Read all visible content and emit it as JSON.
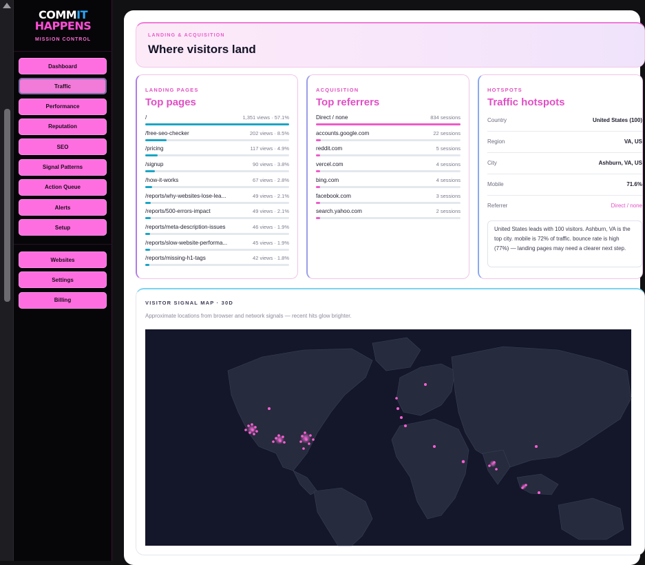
{
  "brand": {
    "line1_a": "COMM",
    "line1_b": "IT",
    "line2": "HAPPENS",
    "subtitle": "MISSION CONTROL"
  },
  "nav": {
    "primary": [
      {
        "label": "Dashboard",
        "active": false
      },
      {
        "label": "Traffic",
        "active": true
      },
      {
        "label": "Performance",
        "active": false
      },
      {
        "label": "Reputation",
        "active": false
      },
      {
        "label": "SEO",
        "active": false
      },
      {
        "label": "Signal Patterns",
        "active": false
      },
      {
        "label": "Action Queue",
        "active": false
      },
      {
        "label": "Alerts",
        "active": false
      },
      {
        "label": "Setup",
        "active": false
      }
    ],
    "secondary": [
      {
        "label": "Websites"
      },
      {
        "label": "Settings"
      },
      {
        "label": "Billing"
      }
    ]
  },
  "hero": {
    "eyebrow": "LANDING & ACQUISITION",
    "title": "Where visitors land"
  },
  "landing": {
    "eyebrow": "LANDING PAGES",
    "title": "Top pages",
    "rows": [
      {
        "label": "/",
        "value": "1,351 views · 57.1%",
        "pct": 1.0
      },
      {
        "label": "/free-seo-checker",
        "value": "202 views · 8.5%",
        "pct": 0.15
      },
      {
        "label": "/pricing",
        "value": "117 views · 4.9%",
        "pct": 0.087
      },
      {
        "label": "/signup",
        "value": "90 views · 3.8%",
        "pct": 0.067
      },
      {
        "label": "/how-it-works",
        "value": "67 views · 2.8%",
        "pct": 0.05
      },
      {
        "label": "/reports/why-websites-lose-lea...",
        "value": "49 views · 2.1%",
        "pct": 0.036
      },
      {
        "label": "/reports/500-errors-impact",
        "value": "49 views · 2.1%",
        "pct": 0.036
      },
      {
        "label": "/reports/meta-description-issues",
        "value": "46 views · 1.9%",
        "pct": 0.034
      },
      {
        "label": "/reports/slow-website-performa...",
        "value": "45 views · 1.9%",
        "pct": 0.033
      },
      {
        "label": "/reports/missing-h1-tags",
        "value": "42 views · 1.8%",
        "pct": 0.031
      }
    ]
  },
  "acquisition": {
    "eyebrow": "ACQUISITION",
    "title": "Top referrers",
    "rows": [
      {
        "label": "Direct / none",
        "value": "834 sessions",
        "pct": 1.0
      },
      {
        "label": "accounts.google.com",
        "value": "22 sessions",
        "pct": 0.035
      },
      {
        "label": "reddit.com",
        "value": "5 sessions",
        "pct": 0.03
      },
      {
        "label": "vercel.com",
        "value": "4 sessions",
        "pct": 0.03
      },
      {
        "label": "bing.com",
        "value": "4 sessions",
        "pct": 0.03
      },
      {
        "label": "facebook.com",
        "value": "3 sessions",
        "pct": 0.03
      },
      {
        "label": "search.yahoo.com",
        "value": "2 sessions",
        "pct": 0.03
      }
    ]
  },
  "hotspots": {
    "eyebrow": "HOTSPOTS",
    "title": "Traffic hotspots",
    "rows": [
      {
        "key": "Country",
        "value": "United States (100)"
      },
      {
        "key": "Region",
        "value": "VA, US"
      },
      {
        "key": "City",
        "value": "Ashburn, VA, US"
      },
      {
        "key": "Mobile",
        "value": "71.6%"
      },
      {
        "key": "Referrer",
        "value": "Direct / none"
      }
    ],
    "summary": "United States leads with 100 visitors. Ashburn, VA is the top city. mobile is 72% of traffic. bounce rate is high (77%) — landing pages may need a clearer next step."
  },
  "map": {
    "eyebrow": "VISITOR SIGNAL MAP · 30D",
    "subtitle": "Approximate locations from browser and network signals — recent hits glow brighter."
  },
  "colors": {
    "accent_pink": "#ff6ee0",
    "bar_cyan": "#1aa5c4",
    "bar_pink": "#ee5bc8",
    "map_bg": "#14172a",
    "map_dot": "#ff5fd6"
  }
}
